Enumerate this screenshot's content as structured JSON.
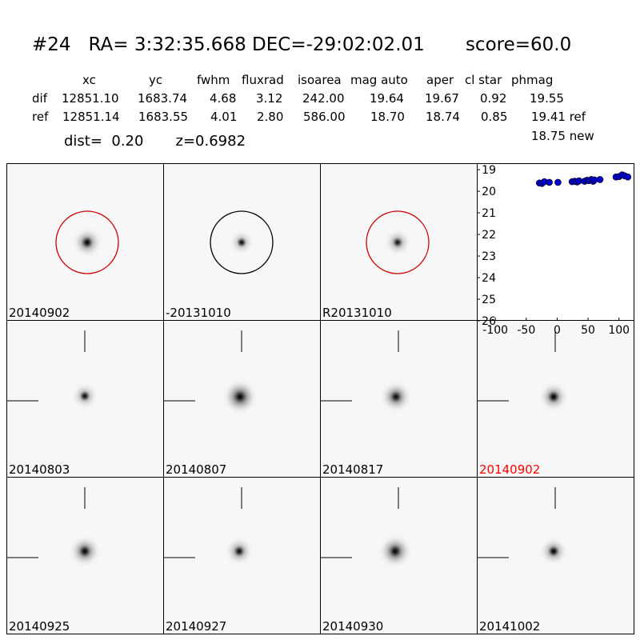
{
  "header": {
    "title": "#24   RA= 3:32:35.668 DEC=-29:02:02.01       score=60.0",
    "distance_line": "dist=  0.20       z=0.6982"
  },
  "table": {
    "columns": [
      "xc",
      "yc",
      "fwhm",
      "fluxrad",
      "isoarea",
      "mag auto",
      "aper",
      "cl star",
      "phmag"
    ],
    "rows": [
      {
        "label": "dif",
        "values": [
          "12851.10",
          "1683.74",
          "4.68",
          "3.12",
          "242.00",
          "19.64",
          "19.67",
          "0.92",
          "19.55"
        ]
      },
      {
        "label": "ref",
        "values": [
          "12851.14",
          "1683.55",
          "4.01",
          "2.80",
          "586.00",
          "18.70",
          "18.74",
          "0.85",
          "19.41 ref"
        ]
      }
    ],
    "extra_value": "18.75 new"
  },
  "colors": {
    "circle_red": "#cc0000",
    "circle_black": "#000000",
    "highlight_label": "#ff0000",
    "marker": "#0000cc"
  },
  "panels": [
    {
      "label": "20140902",
      "circle": "red",
      "core": 0.9,
      "halo": 0.4,
      "crosshair": false,
      "highlight": false
    },
    {
      "label": "-20131010",
      "circle": "black",
      "core": 0.85,
      "halo": 0.25,
      "crosshair": false,
      "highlight": false
    },
    {
      "label": "R20131010",
      "circle": "red",
      "core": 0.8,
      "halo": 0.3,
      "crosshair": false,
      "highlight": false
    },
    {
      "label": "20140803",
      "circle": "none",
      "core": 0.85,
      "halo": 0.3,
      "crosshair": true,
      "highlight": false
    },
    {
      "label": "20140807",
      "circle": "none",
      "core": 0.9,
      "halo": 0.55,
      "crosshair": true,
      "highlight": false
    },
    {
      "label": "20140817",
      "circle": "none",
      "core": 0.85,
      "halo": 0.45,
      "crosshair": true,
      "highlight": false
    },
    {
      "label": "20140902",
      "circle": "none",
      "core": 0.9,
      "halo": 0.4,
      "crosshair": true,
      "highlight": true
    },
    {
      "label": "20140925",
      "circle": "none",
      "core": 0.9,
      "halo": 0.45,
      "crosshair": true,
      "highlight": false
    },
    {
      "label": "20140927",
      "circle": "none",
      "core": 0.85,
      "halo": 0.35,
      "crosshair": true,
      "highlight": false
    },
    {
      "label": "20140930",
      "circle": "none",
      "core": 0.9,
      "halo": 0.5,
      "crosshair": true,
      "highlight": false
    },
    {
      "label": "20141002",
      "circle": "none",
      "core": 0.9,
      "halo": 0.35,
      "crosshair": true,
      "highlight": false
    }
  ],
  "chart_data": {
    "type": "scatter",
    "title": "",
    "xlabel": "",
    "ylabel": "",
    "xlim": [
      -130,
      125
    ],
    "ylim": [
      26,
      18.7
    ],
    "y_inverted": true,
    "x_ticks": [
      "-100",
      "-50",
      "0",
      "50",
      "100"
    ],
    "x_tick_values": [
      -100,
      -50,
      0,
      50,
      100
    ],
    "y_ticks": [
      "19",
      "20",
      "21",
      "22",
      "23",
      "24",
      "25",
      "26"
    ],
    "y_tick_values": [
      19,
      20,
      21,
      22,
      23,
      24,
      25,
      26
    ],
    "grid": false,
    "series": [
      {
        "x": [
          -30,
          -26,
          -22,
          -14,
          0,
          23,
          27,
          31,
          34,
          43,
          47,
          50,
          54,
          57,
          59,
          68,
          94,
          99,
          104,
          108,
          113
        ],
        "y": [
          19.58,
          19.6,
          19.52,
          19.55,
          19.55,
          19.52,
          19.5,
          19.53,
          19.48,
          19.5,
          19.45,
          19.47,
          19.42,
          19.5,
          19.44,
          19.42,
          19.3,
          19.28,
          19.2,
          19.25,
          19.3
        ]
      }
    ]
  }
}
